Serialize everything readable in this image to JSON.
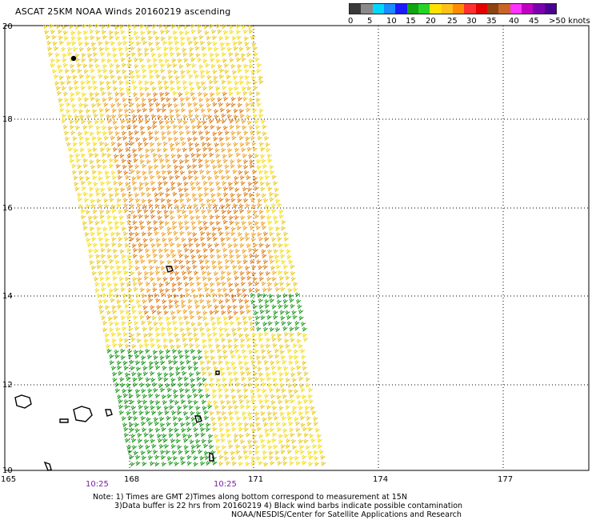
{
  "title": "ASCAT 25KM NOAA Winds 20160219 ascending",
  "colorbar": {
    "colors": [
      "#3a3a3a",
      "#8a8a8a",
      "#00d8ff",
      "#1a8cff",
      "#1a1aff",
      "#12a512",
      "#27d327",
      "#ffe000",
      "#ffc01a",
      "#ff8c00",
      "#ff3030",
      "#e60000",
      "#8b4513",
      "#c86428",
      "#ff33ff",
      "#c000c0",
      "#7a00b0",
      "#4a0090"
    ],
    "labels": [
      "0",
      "5",
      "10",
      "15",
      "20",
      "25",
      "30",
      "35",
      "40",
      "45",
      ">50 knots"
    ]
  },
  "axes": {
    "x_ticks": [
      "165",
      "168",
      "171",
      "174",
      "177"
    ],
    "y_ticks": [
      "20",
      "18",
      "16",
      "14",
      "12",
      "10"
    ]
  },
  "times": [
    "10:25",
    "10:25"
  ],
  "notes": {
    "line1": "Note: 1) Times are GMT 2)Times along bottom correspond to measurement at 15N",
    "line2": "3)Data buffer is 22 hrs from 20160219 4) Black wind barbs indicate possible contamination",
    "line3": "NOAA/NESDIS/Center for Satellite Applications and Research"
  }
}
